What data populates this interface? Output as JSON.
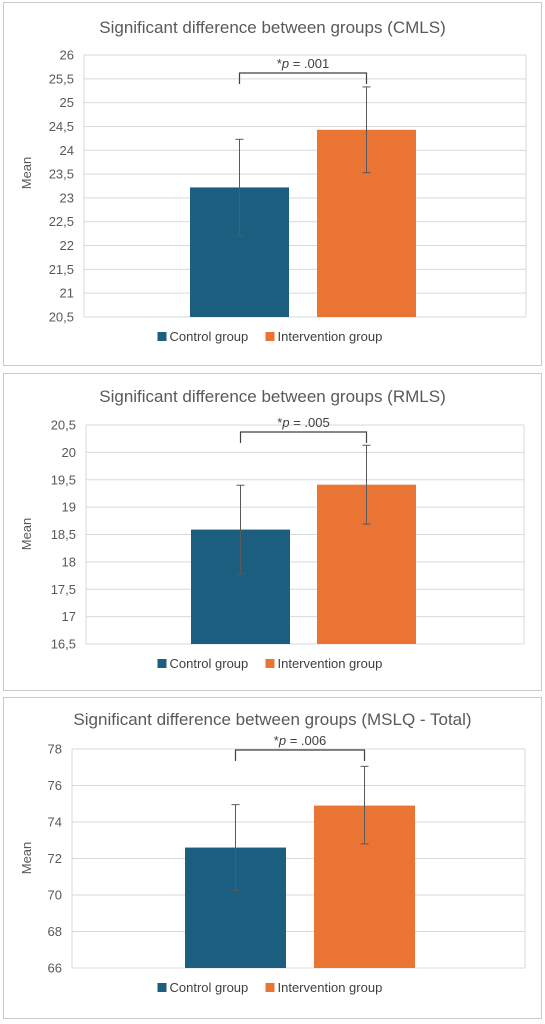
{
  "chart_data": [
    {
      "type": "bar",
      "title": "Significant difference between groups (CMLS)",
      "ylabel": "Mean",
      "ylim": [
        20.5,
        26
      ],
      "yticks": [
        "20,5",
        "21",
        "21,5",
        "22",
        "22,5",
        "23",
        "23,5",
        "24",
        "24,5",
        "25",
        "25,5",
        "26"
      ],
      "series": [
        {
          "name": "Control group",
          "values": [
            23.22
          ],
          "error_low": [
            22.2
          ],
          "error_high": [
            24.23
          ]
        },
        {
          "name": "Intervention group",
          "values": [
            24.43
          ],
          "error_low": [
            23.53
          ],
          "error_high": [
            25.33
          ]
        }
      ],
      "annotation": {
        "prefix": "*",
        "italic": "p",
        "suffix": " = .001"
      },
      "legend": "bottom",
      "grid": true
    },
    {
      "type": "bar",
      "title": "Significant difference between groups (RMLS)",
      "ylabel": "Mean",
      "ylim": [
        16.5,
        20.5
      ],
      "yticks": [
        "16,5",
        "17",
        "17,5",
        "18",
        "18,5",
        "19",
        "19,5",
        "20",
        "20,5"
      ],
      "series": [
        {
          "name": "Control group",
          "values": [
            18.59
          ],
          "error_low": [
            17.78
          ],
          "error_high": [
            19.4
          ]
        },
        {
          "name": "Intervention group",
          "values": [
            19.41
          ],
          "error_low": [
            18.69
          ],
          "error_high": [
            20.13
          ]
        }
      ],
      "annotation": {
        "prefix": "*",
        "italic": "p",
        "suffix": " = .005"
      },
      "legend": "bottom",
      "grid": true
    },
    {
      "type": "bar",
      "title": "Significant difference between groups (MSLQ - Total)",
      "ylabel": "Mean",
      "ylim": [
        66,
        78
      ],
      "yticks": [
        "66",
        "68",
        "70",
        "72",
        "74",
        "76",
        "78"
      ],
      "series": [
        {
          "name": "Control group",
          "values": [
            72.6
          ],
          "error_low": [
            70.25
          ],
          "error_high": [
            74.95
          ]
        },
        {
          "name": "Intervention group",
          "values": [
            74.9
          ],
          "error_low": [
            72.8
          ],
          "error_high": [
            77.05
          ]
        }
      ],
      "annotation": {
        "prefix": "*",
        "italic": "p",
        "suffix": " = .006"
      },
      "legend": "bottom",
      "grid": true
    }
  ],
  "colors": {
    "control": "#1b5e80",
    "intervention": "#ea7434",
    "grid": "#d9d9d9",
    "error_bar": "#595959",
    "text": "#595959"
  }
}
